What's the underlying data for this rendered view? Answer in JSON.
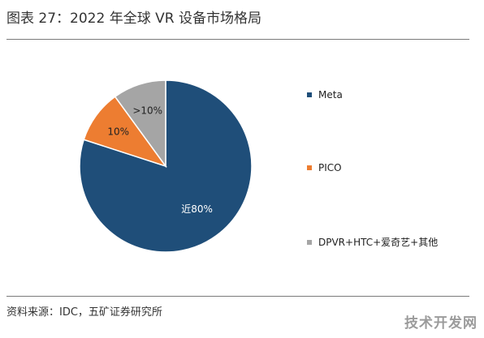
{
  "figure": {
    "title": "图表 27：2022 年全球 VR 设备市场格局",
    "source": "资料来源：IDC，五矿证券研究所",
    "watermark": "技术开发网"
  },
  "chart_data": {
    "type": "pie",
    "categories": [
      "Meta",
      "PICO",
      "DPVR+HTC+爱奇艺+其他"
    ],
    "values": [
      80,
      10,
      10
    ],
    "data_labels": [
      "近80%",
      "10%",
      ">10%"
    ],
    "colors": [
      "#1f4e79",
      "#ed7d31",
      "#a5a5a5"
    ],
    "label_colors": [
      "#ffffff",
      "#222222",
      "#222222"
    ],
    "legend_position": "right"
  }
}
